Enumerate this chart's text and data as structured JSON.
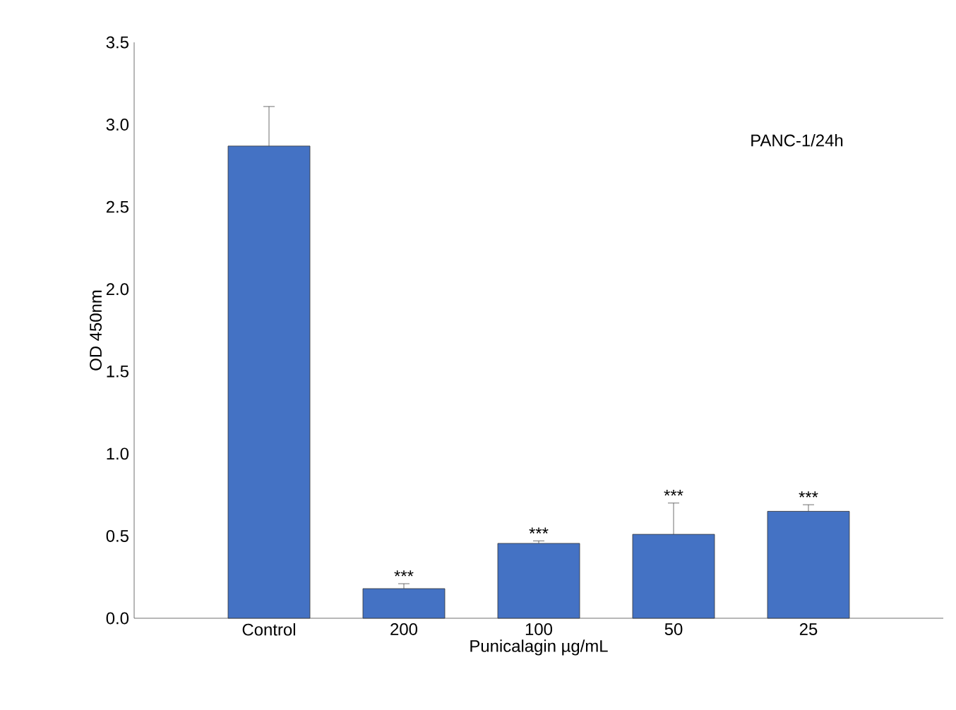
{
  "chart_data": {
    "type": "bar",
    "xlabel": "Punicalagin µg/mL",
    "ylabel": "OD 450nm",
    "categories": [
      "Control",
      "200",
      "100",
      "50",
      "25"
    ],
    "values": [
      2.87,
      0.18,
      0.455,
      0.51,
      0.65
    ],
    "errors": [
      [
        2.87,
        3.11
      ],
      [
        0.18,
        0.21
      ],
      [
        0.455,
        0.47
      ],
      [
        0.51,
        0.7
      ],
      [
        0.65,
        0.69
      ]
    ],
    "color": "#4472c4",
    "ylim": [
      0,
      3.5
    ],
    "yticks": [
      {
        "value": 0,
        "label": "0.0"
      },
      {
        "value": 0.5,
        "label": "0.5"
      },
      {
        "value": 1,
        "label": "1.0"
      },
      {
        "value": 1.5,
        "label": "1.5"
      },
      {
        "value": 2,
        "label": "2.0"
      },
      {
        "value": 2.5,
        "label": "2.5"
      },
      {
        "value": 3,
        "label": "3.0"
      },
      {
        "value": 3.5,
        "label": "3.5"
      }
    ],
    "grid": false,
    "annotations": [
      "PANC-1/24h",
      {
        "text": "***",
        "x": "200",
        "y": 0.21
      },
      {
        "text": "***",
        "x": "100",
        "y": 0.47
      },
      {
        "text": "***",
        "x": "50",
        "y": 0.7
      },
      {
        "text": "***",
        "x": "25",
        "y": 0.69
      }
    ]
  }
}
